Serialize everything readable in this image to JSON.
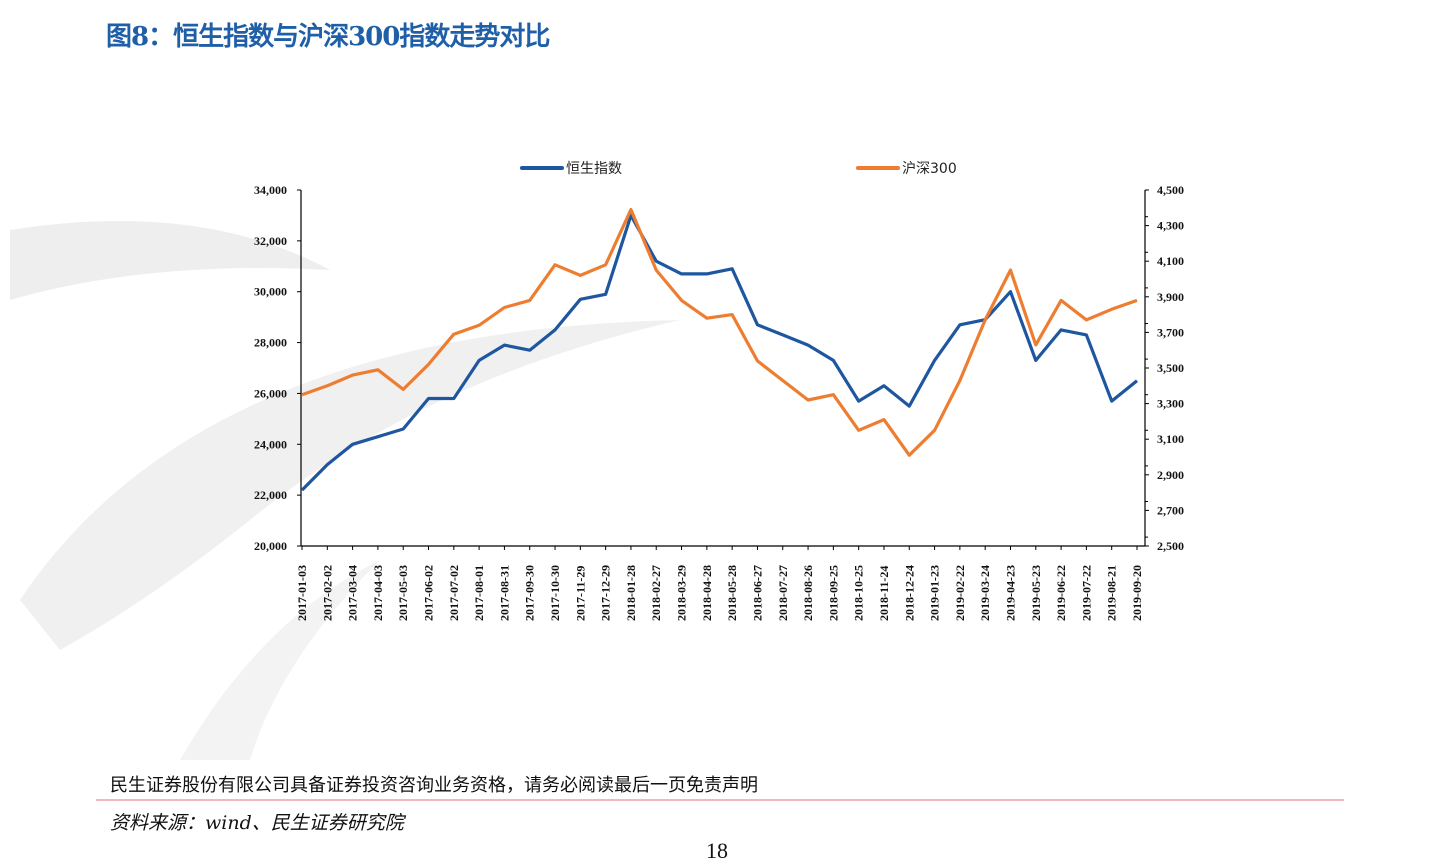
{
  "title": "图8：恒生指数与沪深300指数走势对比",
  "footer": {
    "disclaimer": "民生证券股份有限公司具备证券投资咨询业务资格，请务必阅读最后一页免责声明",
    "source": "资料来源：wind、民生证券研究院",
    "page_number": "18"
  },
  "chart_data": {
    "type": "line",
    "title": "",
    "legend_position": "top",
    "grid": false,
    "x": [
      "2017-01-03",
      "2017-02-02",
      "2017-03-04",
      "2017-04-03",
      "2017-05-03",
      "2017-06-02",
      "2017-07-02",
      "2017-08-01",
      "2017-08-31",
      "2017-09-30",
      "2017-10-30",
      "2017-11-29",
      "2017-12-29",
      "2018-01-28",
      "2018-02-27",
      "2018-03-29",
      "2018-04-28",
      "2018-05-28",
      "2018-06-27",
      "2018-07-27",
      "2018-08-26",
      "2018-09-25",
      "2018-10-25",
      "2018-11-24",
      "2018-12-24",
      "2019-01-23",
      "2019-02-22",
      "2019-03-24",
      "2019-04-23",
      "2019-05-23",
      "2019-06-22",
      "2019-07-22",
      "2019-08-21",
      "2019-09-20"
    ],
    "y_left": {
      "range": [
        20000,
        34000
      ],
      "ticks": [
        "20,000",
        "22,000",
        "24,000",
        "26,000",
        "28,000",
        "30,000",
        "32,000",
        "34,000"
      ]
    },
    "y_right": {
      "range": [
        2500,
        4500
      ],
      "ticks": [
        "2,500",
        "2,700",
        "2,900",
        "3,100",
        "3,300",
        "3,500",
        "3,700",
        "3,900",
        "4,100",
        "4,300",
        "4,500"
      ]
    },
    "series": [
      {
        "name": "恒生指数",
        "axis": "left",
        "color": "#1f56a0",
        "values": [
          22200,
          23200,
          24000,
          24300,
          24600,
          25800,
          25800,
          27300,
          27900,
          27700,
          28500,
          29700,
          29900,
          33000,
          31200,
          30700,
          30700,
          30900,
          28700,
          28300,
          27900,
          27300,
          25700,
          26300,
          25500,
          27300,
          28700,
          28900,
          30000,
          27300,
          28500,
          28300,
          25700,
          26500
        ]
      },
      {
        "name": "沪深300",
        "axis": "right",
        "color": "#ed7d31",
        "values": [
          3350,
          3400,
          3460,
          3490,
          3380,
          3520,
          3690,
          3740,
          3840,
          3880,
          4080,
          4020,
          4080,
          4390,
          4050,
          3880,
          3780,
          3800,
          3540,
          3430,
          3320,
          3350,
          3150,
          3210,
          3010,
          3150,
          3430,
          3770,
          4050,
          3630,
          3880,
          3770,
          3830,
          3880
        ]
      }
    ]
  }
}
